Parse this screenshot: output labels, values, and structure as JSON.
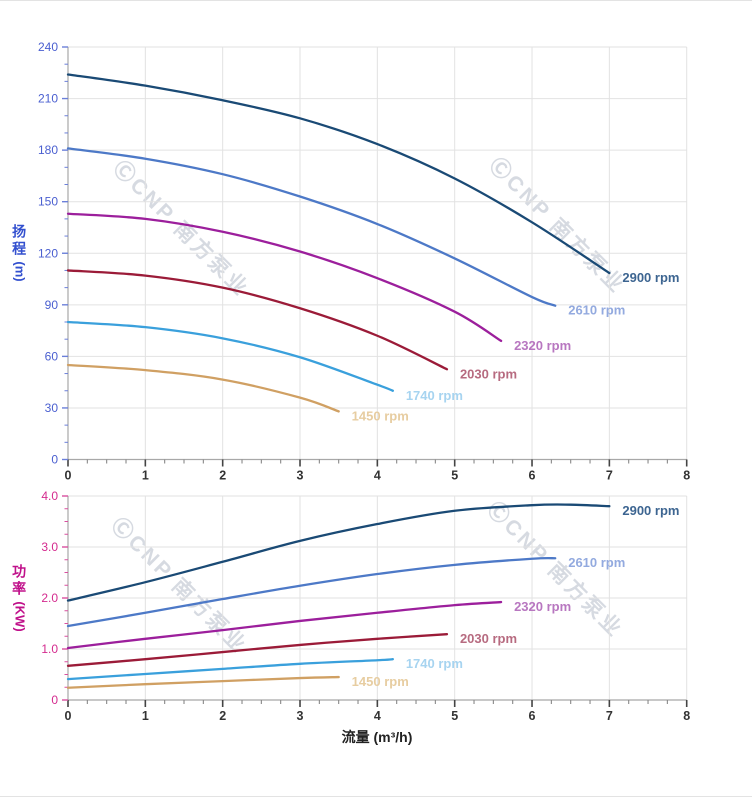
{
  "watermark": {
    "text": "ⒸCNP 南方泵业"
  },
  "axes": {
    "x_title": "流量 (m³/h)",
    "head_title": "扬程",
    "head_unit": "(m)",
    "power_title": "功率",
    "power_unit": "(KW)"
  },
  "colors": {
    "grid": "#e2e2e2",
    "axis_line": "#a8a8a8",
    "x_tick_major": "#444444",
    "x_tick_minor": "#888888",
    "x_tick_label": "#333333"
  },
  "chart_data": [
    {
      "type": "line",
      "title": "",
      "xlabel": "流量 (m³/h)",
      "ylabel": "扬程 (m)",
      "xlim": [
        0,
        8
      ],
      "ylim": [
        0,
        240
      ],
      "x_major": 1,
      "x_minor": 0.25,
      "y_major": 30,
      "y_minor": 10,
      "grid": "on",
      "legend_position": "curve-end-labels",
      "x_tick_labels": [
        "0",
        "1",
        "2",
        "3",
        "4",
        "5",
        "6",
        "7",
        "8"
      ],
      "y_tick_labels": [
        "0",
        "30",
        "60",
        "90",
        "120",
        "150",
        "180",
        "210",
        "240"
      ],
      "y_tick_color": "#6b7fd9",
      "y_label_color": "#4a5fd0",
      "series": [
        {
          "name": "2900 rpm",
          "color": "#1a4a75",
          "label_color": "#3d6591",
          "points": [
            [
              0,
              224
            ],
            [
              1,
              217.5
            ],
            [
              2,
              209
            ],
            [
              3,
              198.5
            ],
            [
              4,
              183.5
            ],
            [
              5,
              163.5
            ],
            [
              6,
              138
            ],
            [
              7,
              108.5
            ]
          ]
        },
        {
          "name": "2610 rpm",
          "color": "#4d79c7",
          "label_color": "#93aadf",
          "points": [
            [
              0,
              181
            ],
            [
              1,
              175
            ],
            [
              2,
              166
            ],
            [
              3,
              153
            ],
            [
              4,
              137
            ],
            [
              5,
              117
            ],
            [
              6,
              94.5
            ],
            [
              6.3,
              89.5
            ]
          ]
        },
        {
          "name": "2320 rpm",
          "color": "#9c1f9c",
          "label_color": "#b877c0",
          "points": [
            [
              0,
              143
            ],
            [
              1,
              140
            ],
            [
              2,
              132.5
            ],
            [
              3,
              121
            ],
            [
              4,
              105.5
            ],
            [
              5,
              86
            ],
            [
              5.6,
              69
            ]
          ]
        },
        {
          "name": "2030 rpm",
          "color": "#9b1b38",
          "label_color": "#b76b80",
          "points": [
            [
              0,
              110
            ],
            [
              1,
              107
            ],
            [
              2,
              100
            ],
            [
              3,
              88
            ],
            [
              4,
              72
            ],
            [
              4.9,
              52.5
            ]
          ]
        },
        {
          "name": "1740 rpm",
          "color": "#3aa0dc",
          "label_color": "#a7d4f0",
          "points": [
            [
              0,
              80
            ],
            [
              1,
              77
            ],
            [
              2,
              70.5
            ],
            [
              3,
              59.5
            ],
            [
              4,
              43.5
            ],
            [
              4.2,
              40
            ]
          ]
        },
        {
          "name": "1450 rpm",
          "color": "#d0a063",
          "label_color": "#e7cda1",
          "points": [
            [
              0,
              55
            ],
            [
              1,
              52
            ],
            [
              2,
              46.5
            ],
            [
              3,
              36
            ],
            [
              3.5,
              28
            ]
          ]
        }
      ]
    },
    {
      "type": "line",
      "title": "",
      "xlabel": "流量 (m³/h)",
      "ylabel": "功率 (KW)",
      "xlim": [
        0,
        8
      ],
      "ylim": [
        0,
        4
      ],
      "x_major": 1,
      "x_minor": 0.25,
      "y_major": 1,
      "y_minor": 0.25,
      "grid": "on",
      "legend_position": "curve-end-labels",
      "x_tick_labels": [
        "0",
        "1",
        "2",
        "3",
        "4",
        "5",
        "6",
        "7",
        "8"
      ],
      "y_tick_labels": [
        "0",
        "1.0",
        "2.0",
        "3.0",
        "4.0"
      ],
      "y_tick_color": "#d94f9f",
      "y_label_color": "#d42a8e",
      "series": [
        {
          "name": "2900 rpm",
          "color": "#1a4a75",
          "label_color": "#3d6591",
          "points": [
            [
              0,
              1.95
            ],
            [
              1,
              2.31
            ],
            [
              2,
              2.71
            ],
            [
              3,
              3.12
            ],
            [
              4,
              3.45
            ],
            [
              5,
              3.71
            ],
            [
              6,
              3.82
            ],
            [
              6.5,
              3.83
            ],
            [
              7,
              3.8
            ]
          ]
        },
        {
          "name": "2610 rpm",
          "color": "#4d79c7",
          "label_color": "#93aadf",
          "points": [
            [
              0,
              1.45
            ],
            [
              1,
              1.71
            ],
            [
              2,
              1.98
            ],
            [
              3,
              2.24
            ],
            [
              4,
              2.47
            ],
            [
              5,
              2.65
            ],
            [
              6,
              2.77
            ],
            [
              6.3,
              2.78
            ]
          ]
        },
        {
          "name": "2320 rpm",
          "color": "#9c1f9c",
          "label_color": "#b877c0",
          "points": [
            [
              0,
              1.02
            ],
            [
              1,
              1.2
            ],
            [
              2,
              1.37
            ],
            [
              3,
              1.55
            ],
            [
              4,
              1.71
            ],
            [
              5,
              1.86
            ],
            [
              5.6,
              1.92
            ]
          ]
        },
        {
          "name": "2030 rpm",
          "color": "#9b1b38",
          "label_color": "#b76b80",
          "points": [
            [
              0,
              0.67
            ],
            [
              1,
              0.8
            ],
            [
              2,
              0.94
            ],
            [
              3,
              1.08
            ],
            [
              4,
              1.2
            ],
            [
              4.9,
              1.29
            ]
          ]
        },
        {
          "name": "1740 rpm",
          "color": "#3aa0dc",
          "label_color": "#a7d4f0",
          "points": [
            [
              0,
              0.41
            ],
            [
              1,
              0.51
            ],
            [
              2,
              0.61
            ],
            [
              3,
              0.71
            ],
            [
              4,
              0.78
            ],
            [
              4.2,
              0.8
            ]
          ]
        },
        {
          "name": "1450 rpm",
          "color": "#d0a063",
          "label_color": "#e7cda1",
          "points": [
            [
              0,
              0.24
            ],
            [
              1,
              0.31
            ],
            [
              2,
              0.37
            ],
            [
              3,
              0.43
            ],
            [
              3.5,
              0.45
            ]
          ]
        }
      ]
    }
  ]
}
